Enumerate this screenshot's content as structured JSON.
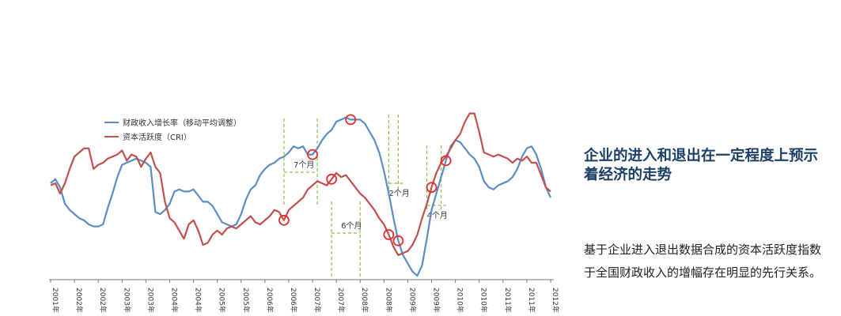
{
  "chart_data": {
    "type": "line",
    "legend": "top-left",
    "grid": false,
    "colors": {
      "fiscal": "#5b8cc4",
      "cri": "#c0504d",
      "marker": "#e0302c",
      "annotation": "#8bbf4a"
    },
    "series": [
      {
        "name": "财政收入增长率（移动平均调整）",
        "key": "fiscal",
        "values": [
          0.5,
          0.7,
          0.3,
          -0.5,
          -0.8,
          -1.0,
          -1.2,
          -1.3,
          -1.5,
          -1.6,
          -1.6,
          -1.5,
          -0.7,
          0.0,
          0.8,
          1.4,
          1.5,
          1.6,
          1.7,
          1.6,
          1.5,
          1.3,
          -0.9,
          -1.0,
          -0.8,
          -0.5,
          0.1,
          0.2,
          0.1,
          0.1,
          0.2,
          -0.1,
          -0.4,
          -0.4,
          -0.6,
          -1.0,
          -1.4,
          -1.5,
          -1.6,
          -1.5,
          -1.0,
          -0.3,
          0.2,
          0.4,
          0.9,
          1.2,
          1.4,
          1.5,
          1.7,
          1.8,
          2.0,
          2.3,
          2.2,
          2.3,
          1.9,
          1.9,
          2.2,
          2.6,
          2.9,
          3.1,
          3.5,
          3.6,
          3.7,
          3.6,
          3.6,
          3.6,
          3.4,
          3.0,
          2.6,
          2.0,
          1.1,
          0.0,
          -1.2,
          -2.3,
          -3.0,
          -3.4,
          -3.8,
          -4.0,
          -3.5,
          -2.2,
          -0.8,
          0.0,
          0.8,
          1.6,
          2.3,
          2.6,
          2.5,
          2.2,
          1.9,
          1.7,
          1.3,
          0.6,
          0.3,
          0.2,
          0.4,
          0.5,
          0.6,
          0.8,
          1.2,
          1.8,
          2.2,
          2.3,
          1.9,
          1.2,
          0.3,
          -0.2
        ]
      },
      {
        "name": "资本活跃度（CRI）",
        "key": "cri",
        "values": [
          0.4,
          0.5,
          0.0,
          0.5,
          1.2,
          1.8,
          2.0,
          2.2,
          2.2,
          1.2,
          1.4,
          1.5,
          1.7,
          1.8,
          1.9,
          2.1,
          1.6,
          1.9,
          1.8,
          1.3,
          1.7,
          2.0,
          1.3,
          1.0,
          -0.4,
          -1.2,
          -1.4,
          -1.8,
          -2.2,
          -1.5,
          -1.3,
          -1.8,
          -2.5,
          -2.4,
          -2.0,
          -1.8,
          -2.0,
          -1.7,
          -1.6,
          -1.7,
          -1.5,
          -1.3,
          -1.1,
          -1.4,
          -1.5,
          -1.3,
          -1.1,
          -0.8,
          -0.9,
          -1.3,
          -0.8,
          -0.6,
          -0.4,
          -0.2,
          0.2,
          0.4,
          0.6,
          0.5,
          0.4,
          0.7,
          1.0,
          0.8,
          0.9,
          0.6,
          0.3,
          0.0,
          -0.2,
          -0.5,
          -0.8,
          -1.2,
          -1.5,
          -2.0,
          -2.6,
          -3.0,
          -2.9,
          -2.8,
          -2.5,
          -2.0,
          -1.2,
          -0.5,
          0.3,
          1.0,
          1.5,
          1.8,
          2.2,
          2.6,
          2.9,
          3.5,
          3.9,
          3.9,
          3.0,
          2.0,
          1.9,
          1.8,
          1.9,
          1.8,
          1.7,
          1.5,
          1.7,
          1.6,
          1.8,
          1.5,
          1.5,
          0.9,
          0.3,
          0.1
        ]
      }
    ],
    "x_labels": [
      "2001年",
      "2002年",
      "2002年",
      "2003年",
      "2003年",
      "2004年",
      "2004年",
      "2005年",
      "2005年",
      "2006年",
      "2006年",
      "2007年",
      "2007年",
      "2008年",
      "2008年",
      "2009年",
      "2009年",
      "2010年",
      "2010年",
      "2011年",
      "2011年",
      "2012年"
    ],
    "annotations": [
      {
        "label": "7个月"
      },
      {
        "label": "6个月"
      },
      {
        "label": "2个月"
      },
      {
        "label": "4个月"
      }
    ]
  },
  "heading": "企业的进入和退出在一定程度上预示着经济的走势",
  "body": "基于企业进入退出数据合成的资本活跃度指数于全国财政收入的增幅存在明显的先行关系。"
}
